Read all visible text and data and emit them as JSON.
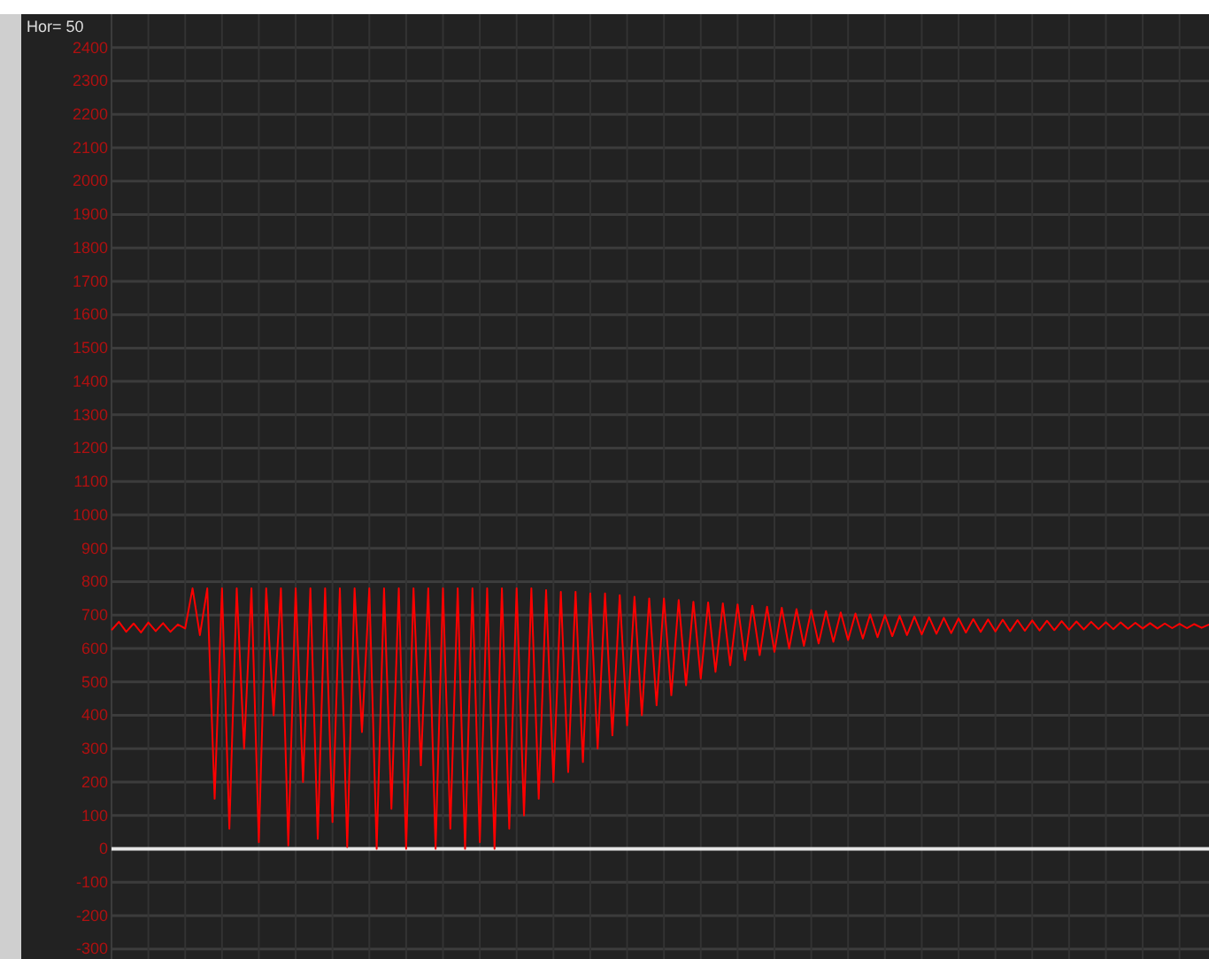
{
  "chart_data": {
    "type": "line",
    "annotations": [
      "Hor= 50"
    ],
    "categories": [
      null,
      null,
      null,
      null,
      null,
      null,
      null,
      null,
      null,
      null,
      null,
      null,
      null,
      null,
      null,
      null,
      null,
      null,
      null,
      null,
      null,
      null,
      null,
      null,
      null,
      null,
      null,
      null,
      null,
      null,
      null,
      null,
      null,
      null,
      null,
      null,
      null,
      null,
      null,
      null,
      null,
      null,
      null,
      null,
      null,
      null,
      null,
      null,
      null,
      null,
      null,
      null,
      null,
      null,
      null,
      null,
      null,
      null,
      null,
      null,
      null,
      null,
      null,
      null,
      null,
      null,
      null,
      null,
      null,
      null,
      null,
      null,
      null,
      null,
      null,
      null,
      null,
      null,
      null,
      null,
      null,
      null,
      null,
      null,
      null,
      null,
      null,
      null,
      null,
      null,
      null,
      null,
      null,
      null,
      null,
      null,
      null,
      null,
      null,
      null,
      null,
      null,
      null,
      null,
      null,
      null,
      null,
      null,
      null,
      null,
      null,
      null,
      null,
      null,
      null,
      null,
      null,
      null,
      null,
      null,
      null,
      null,
      null,
      null,
      null,
      null,
      null,
      null,
      null,
      null,
      null,
      null,
      null,
      null,
      null,
      null,
      null,
      null,
      null,
      null,
      null,
      null,
      null,
      null,
      null,
      null,
      null,
      null,
      null,
      null
    ],
    "series": [
      {
        "color": "#ff0000",
        "values": [
          655,
          680,
          650,
          675,
          648,
          678,
          652,
          676,
          650,
          672,
          660,
          780,
          640,
          780,
          150,
          780,
          60,
          780,
          300,
          780,
          20,
          780,
          400,
          780,
          10,
          780,
          200,
          780,
          30,
          780,
          80,
          780,
          5,
          780,
          350,
          780,
          0,
          780,
          120,
          780,
          0,
          780,
          250,
          780,
          0,
          780,
          60,
          780,
          0,
          780,
          20,
          780,
          0,
          780,
          60,
          780,
          100,
          780,
          150,
          775,
          200,
          770,
          230,
          770,
          260,
          765,
          300,
          765,
          340,
          760,
          370,
          755,
          400,
          750,
          430,
          750,
          460,
          745,
          490,
          740,
          510,
          738,
          530,
          735,
          550,
          732,
          565,
          728,
          580,
          725,
          590,
          722,
          600,
          718,
          608,
          715,
          615,
          712,
          620,
          708,
          625,
          705,
          630,
          702,
          634,
          700,
          637,
          698,
          640,
          696,
          642,
          694,
          644,
          692,
          646,
          690,
          648,
          688,
          650,
          687,
          651,
          686,
          652,
          685,
          653,
          684,
          654,
          683,
          655,
          682,
          656,
          681,
          657,
          680,
          658,
          679,
          658,
          678,
          659,
          677,
          660,
          676,
          660,
          675,
          661,
          674,
          661,
          673,
          662,
          672
        ]
      }
    ],
    "ylim": [
      -330,
      2500
    ],
    "yticks": [
      -300,
      -200,
      -100,
      0,
      100,
      200,
      300,
      400,
      500,
      600,
      700,
      800,
      900,
      1000,
      1100,
      1200,
      1300,
      1400,
      1500,
      1600,
      1700,
      1800,
      1900,
      2000,
      2100,
      2200,
      2300,
      2400
    ],
    "grid": true,
    "ref_lines": [
      {
        "axis": "y",
        "value": 0,
        "color": "#e6e6e6"
      }
    ]
  }
}
